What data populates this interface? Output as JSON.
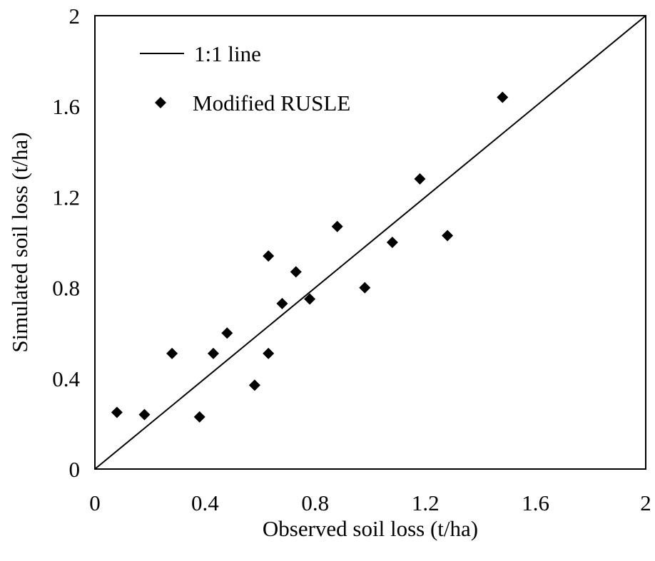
{
  "chart_data": {
    "type": "scatter",
    "xlabel": "Observed soil loss (t/ha)",
    "ylabel": "Simulated soil loss (t/ha)",
    "xlim": [
      0,
      2
    ],
    "ylim": [
      0,
      2
    ],
    "xticks": [
      "0",
      "0.4",
      "0.8",
      "1.2",
      "1.6",
      "2"
    ],
    "yticks": [
      "0",
      "0.4",
      "0.8",
      "1.2",
      "1.6",
      "2"
    ],
    "grid": false,
    "legend_position": "top-left",
    "series": [
      {
        "name": "1:1 line",
        "kind": "line",
        "x": [
          0,
          2
        ],
        "y": [
          0,
          2
        ],
        "color": "#000000"
      },
      {
        "name": "Modified RUSLE",
        "kind": "scatter",
        "marker": "diamond",
        "color": "#000000",
        "x": [
          0.08,
          0.18,
          0.28,
          0.38,
          0.43,
          0.48,
          0.58,
          0.63,
          0.63,
          0.68,
          0.73,
          0.78,
          0.88,
          0.98,
          1.08,
          1.18,
          1.28,
          1.48
        ],
        "y": [
          0.25,
          0.24,
          0.51,
          0.23,
          0.51,
          0.6,
          0.37,
          0.51,
          0.94,
          0.73,
          0.87,
          0.75,
          1.07,
          0.8,
          1.0,
          1.28,
          1.03,
          1.64
        ]
      }
    ]
  }
}
